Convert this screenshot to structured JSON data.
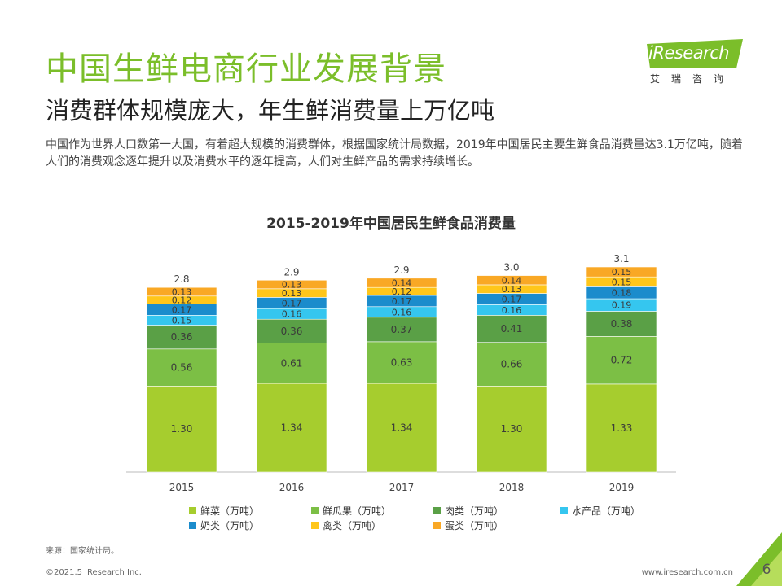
{
  "header": {
    "title": "中国生鲜电商行业发展背景",
    "subtitle": "消费群体规模庞大，年生鲜消费量上万亿吨",
    "description": "中国作为世界人口数第一大国，有着超大规模的消费群体，根据国家统计局数据，2019年中国居民主要生鲜食品消费量达3.1万亿吨，随着人们的消费观念逐年提升以及消费水平的逐年提高，人们对生鲜产品的需求持续增长。"
  },
  "logo": {
    "name": "iResearch",
    "tagline": "艾瑞咨询",
    "color": "#7bbe2a"
  },
  "chart_data": {
    "type": "bar",
    "stacked": true,
    "title": "2015-2019年中国居民生鲜食品消费量",
    "categories": [
      "2015",
      "2016",
      "2017",
      "2018",
      "2019"
    ],
    "totals": [
      "2.8",
      "2.9",
      "2.9",
      "3.0",
      "3.1"
    ],
    "series": [
      {
        "name": "鲜菜（万吨）",
        "color": "#a6cd2e",
        "values": [
          1.3,
          1.34,
          1.34,
          1.3,
          1.33
        ]
      },
      {
        "name": "鲜瓜果（万吨）",
        "color": "#7cbf45",
        "values": [
          0.56,
          0.61,
          0.63,
          0.66,
          0.72
        ]
      },
      {
        "name": "肉类（万吨）",
        "color": "#5aa046",
        "values": [
          0.36,
          0.36,
          0.37,
          0.41,
          0.38
        ]
      },
      {
        "name": "水产品（万吨）",
        "color": "#35c6ef",
        "values": [
          0.15,
          0.16,
          0.16,
          0.16,
          0.19
        ]
      },
      {
        "name": "奶类（万吨）",
        "color": "#1b8ccc",
        "values": [
          0.17,
          0.17,
          0.17,
          0.17,
          0.18
        ]
      },
      {
        "name": "禽类（万吨）",
        "color": "#ffc61a",
        "values": [
          0.12,
          0.13,
          0.12,
          0.13,
          0.15
        ]
      },
      {
        "name": "蛋类（万吨）",
        "color": "#f9a825",
        "values": [
          0.13,
          0.13,
          0.14,
          0.14,
          0.15
        ]
      }
    ],
    "value_labels": [
      [
        "1.30",
        "0.56",
        "0.36",
        "0.15",
        "0.17",
        "0.12",
        "0.13"
      ],
      [
        "1.34",
        "0.61",
        "0.36",
        "0.16",
        "0.17",
        "0.13",
        "0.13"
      ],
      [
        "1.34",
        "0.63",
        "0.37",
        "0.16",
        "0.17",
        "0.12",
        "0.14"
      ],
      [
        "1.30",
        "0.66",
        "0.41",
        "0.16",
        "0.17",
        "0.13",
        "0.14"
      ],
      [
        "1.33",
        "0.72",
        "0.38",
        "0.19",
        "0.18",
        "0.15",
        "0.15"
      ]
    ],
    "ylim": [
      0,
      3.1
    ],
    "grid": false,
    "legend_position": "bottom"
  },
  "footer": {
    "source": "来源：国家统计局。",
    "copyright": "©2021.5 iResearch Inc.",
    "website": "www.iresearch.com.cn",
    "page": "6"
  }
}
